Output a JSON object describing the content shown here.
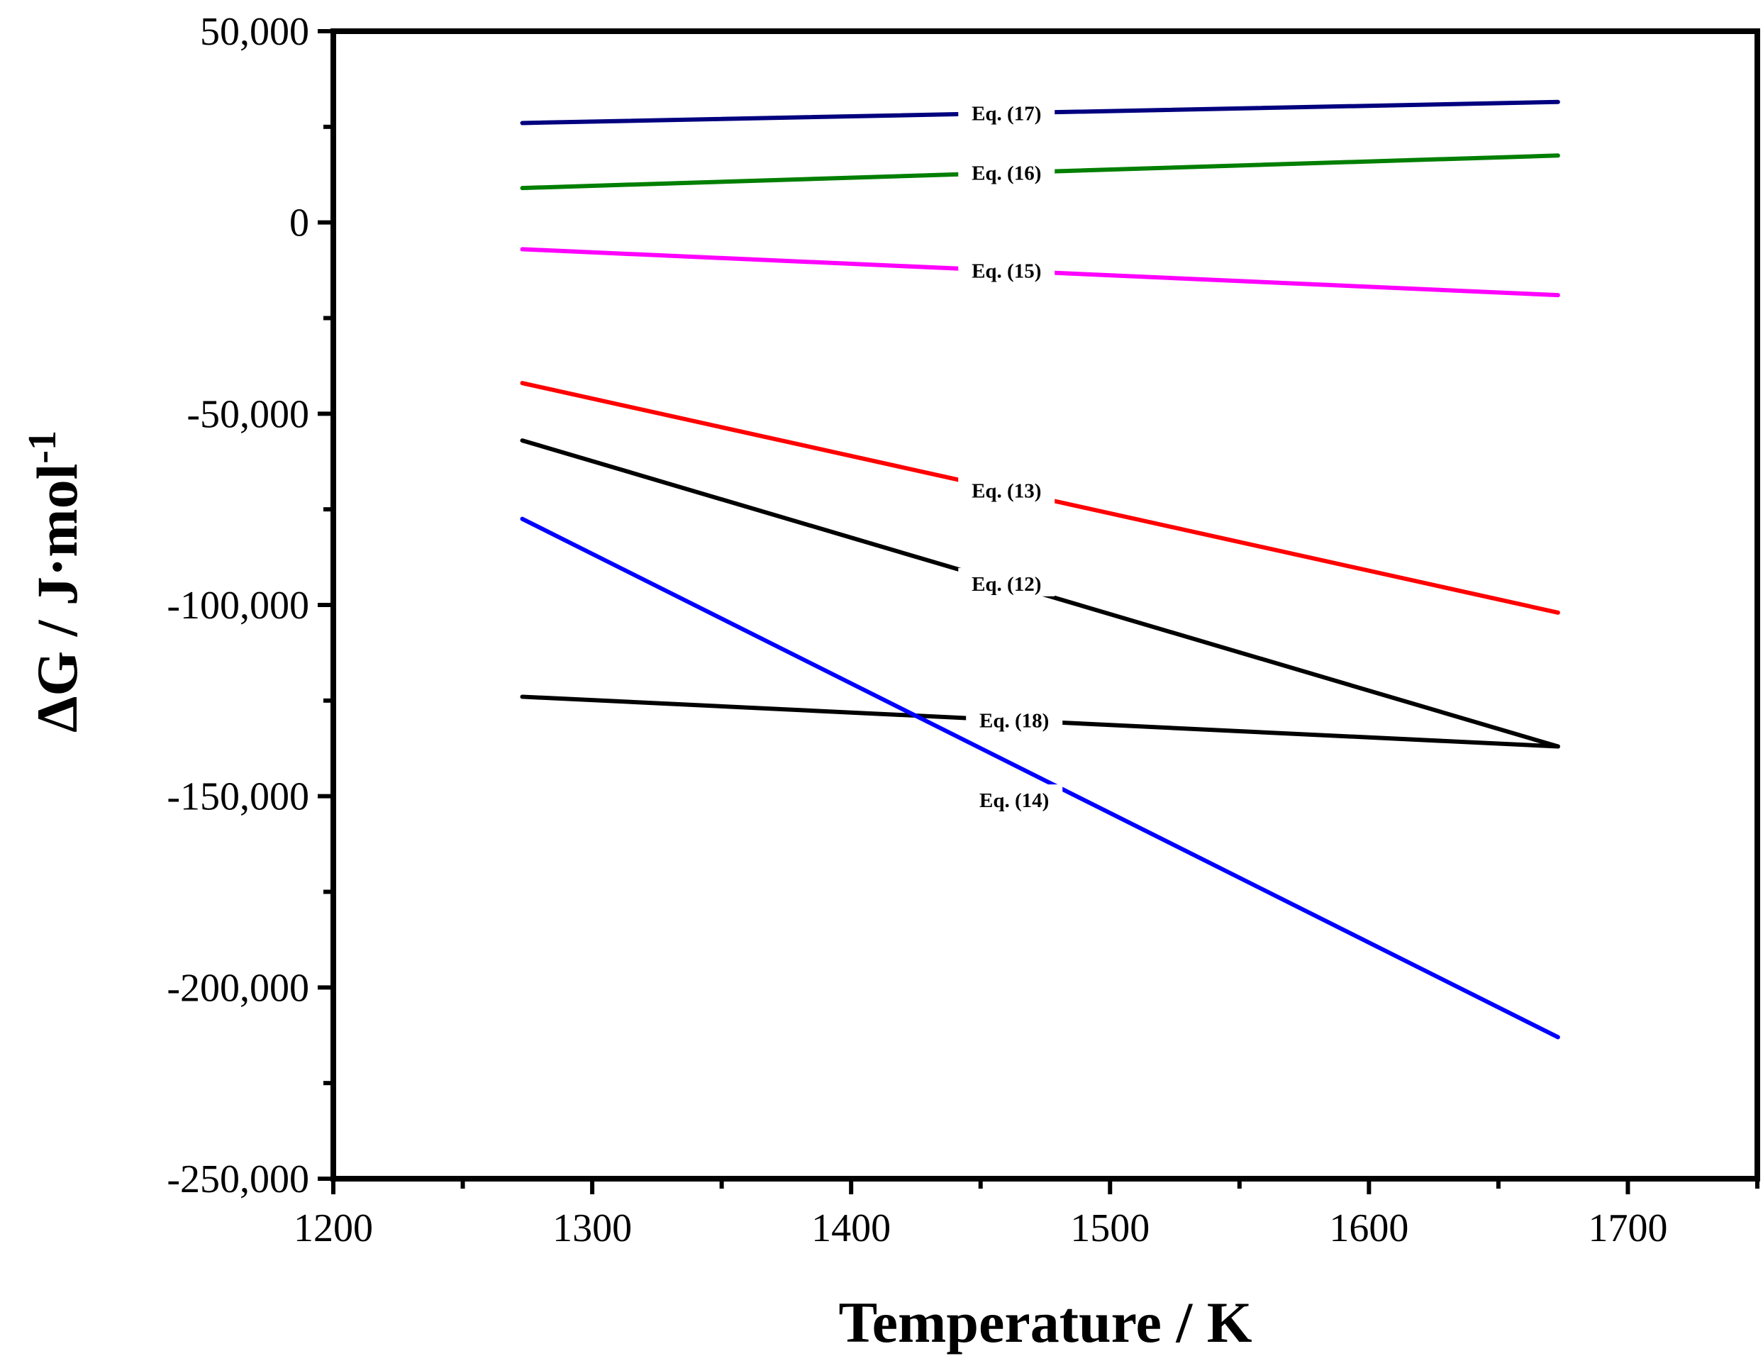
{
  "chart_data": {
    "type": "line",
    "title": "",
    "xlabel": "Temperature / K",
    "ylabel": "ΔG / J·mol",
    "ylabel_superscript": "-1",
    "xlim": [
      1200,
      1750
    ],
    "ylim": [
      -250000,
      50000
    ],
    "xticks": [
      1200,
      1300,
      1400,
      1500,
      1600,
      1700
    ],
    "yticks": [
      50000,
      0,
      -50000,
      -100000,
      -150000,
      -200000,
      -250000
    ],
    "xtick_labels": [
      "1200",
      "1300",
      "1400",
      "1500",
      "1600",
      "1700"
    ],
    "ytick_labels": [
      "50,000",
      "0",
      "-50,000",
      "-100,000",
      "-150,000",
      "-200,000",
      "-250,000"
    ],
    "grid": false,
    "series": [
      {
        "name": "Eq. (17)",
        "color": "#00007f",
        "x": [
          1273,
          1673
        ],
        "y": [
          26000,
          31500
        ],
        "label_x": 1460
      },
      {
        "name": "Eq. (16)",
        "color": "#007f00",
        "x": [
          1273,
          1673
        ],
        "y": [
          9000,
          17500
        ],
        "label_x": 1460
      },
      {
        "name": "Eq. (15)",
        "color": "#ff00ff",
        "x": [
          1273,
          1673
        ],
        "y": [
          -7000,
          -19000
        ],
        "label_x": 1460
      },
      {
        "name": "Eq. (13)",
        "color": "#ff0000",
        "x": [
          1273,
          1673
        ],
        "y": [
          -42000,
          -102000
        ],
        "label_x": 1460
      },
      {
        "name": "Eq. (12)",
        "color": "#000000",
        "x": [
          1273,
          1673
        ],
        "y": [
          -57000,
          -137000
        ],
        "label_x": 1460
      },
      {
        "name": "Eq. (18)",
        "color": "#000000",
        "x": [
          1273,
          1673
        ],
        "y": [
          -124000,
          -137000
        ],
        "label_x": 1463
      },
      {
        "name": "Eq. (14)",
        "color": "#0000ff",
        "x": [
          1273,
          1673
        ],
        "y": [
          -77500,
          -213000
        ],
        "label_x": 1463,
        "label_y": -151000
      }
    ]
  }
}
